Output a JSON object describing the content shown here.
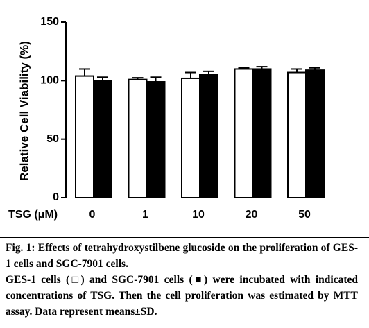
{
  "chart_data": {
    "type": "bar",
    "y_label": "Relative Cell Viability (%)",
    "x_label": "TSG (μM)",
    "categories": [
      "0",
      "1",
      "10",
      "20",
      "50"
    ],
    "series": [
      {
        "color": "#ffffff",
        "values": [
          104,
          101,
          102,
          110,
          107
        ],
        "errors": [
          6,
          1.5,
          5,
          1,
          3
        ]
      },
      {
        "color": "#000000",
        "values": [
          100,
          99,
          105,
          110,
          109
        ],
        "errors": [
          3,
          4,
          3,
          2,
          2
        ]
      }
    ],
    "ylim": [
      0,
      150
    ],
    "yticks": [
      0,
      50,
      100,
      150
    ]
  },
  "caption": {
    "title": "Fig. 1: Effects of tetrahydroxystilbene glucoside on the proliferation of GES-1 cells and SGC-7901 cells.",
    "text": "GES-1 cells (□) and SGC-7901 cells (■) were incubated with indicated concentrations of TSG. Then the cell proliferation was estimated by MTT assay. Data represent means±SD."
  }
}
